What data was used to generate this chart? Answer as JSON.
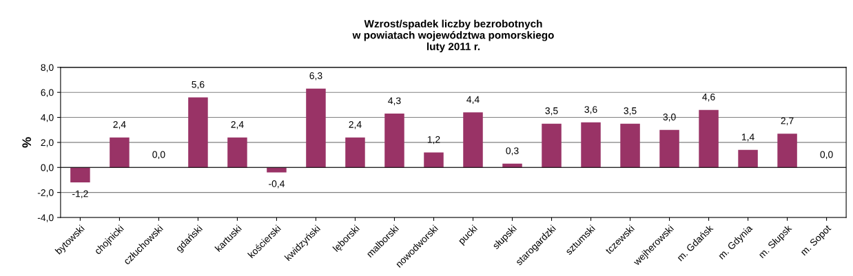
{
  "chart_data": {
    "type": "bar",
    "title": "Wzrost/spadek liczby bezrobotnych\nw powiatach województwa pomorskiego\nluty 2011 r.",
    "ylabel": "%",
    "categories": [
      "bytowski",
      "chojnicki",
      "człuchowski",
      "gdański",
      "kartuski",
      "kościerski",
      "kwidzyński",
      "lęborski",
      "malborski",
      "nowodworski",
      "pucki",
      "słupski",
      "starogardzki",
      "sztumski",
      "tczewski",
      "wejherowski",
      "m. Gdańsk",
      "m. Gdynia",
      "m. Słupsk",
      "m. Sopot"
    ],
    "values": [
      -1.2,
      2.4,
      0.0,
      5.6,
      2.4,
      -0.4,
      6.3,
      2.4,
      4.3,
      1.2,
      4.4,
      0.3,
      3.5,
      3.6,
      3.5,
      3.0,
      4.6,
      1.4,
      2.7,
      0.0
    ],
    "value_labels": [
      "-1,2",
      "2,4",
      "0,0",
      "5,6",
      "2,4",
      "-0,4",
      "6,3",
      "2,4",
      "4,3",
      "1,2",
      "4,4",
      "0,3",
      "3,5",
      "3,6",
      "3,5",
      "3,0",
      "4,6",
      "1,4",
      "2,7",
      "0,0"
    ],
    "color": "#993366",
    "ylim": [
      -4,
      8
    ],
    "yticks": [
      {
        "value": -4,
        "label": "-4,0"
      },
      {
        "value": -2,
        "label": "-2,0"
      },
      {
        "value": 0,
        "label": "0,0"
      },
      {
        "value": 2,
        "label": "2,0"
      },
      {
        "value": 4,
        "label": "4,0"
      },
      {
        "value": 6,
        "label": "6,0"
      },
      {
        "value": 8,
        "label": "8,0"
      }
    ],
    "grid": "y",
    "legend": false
  }
}
